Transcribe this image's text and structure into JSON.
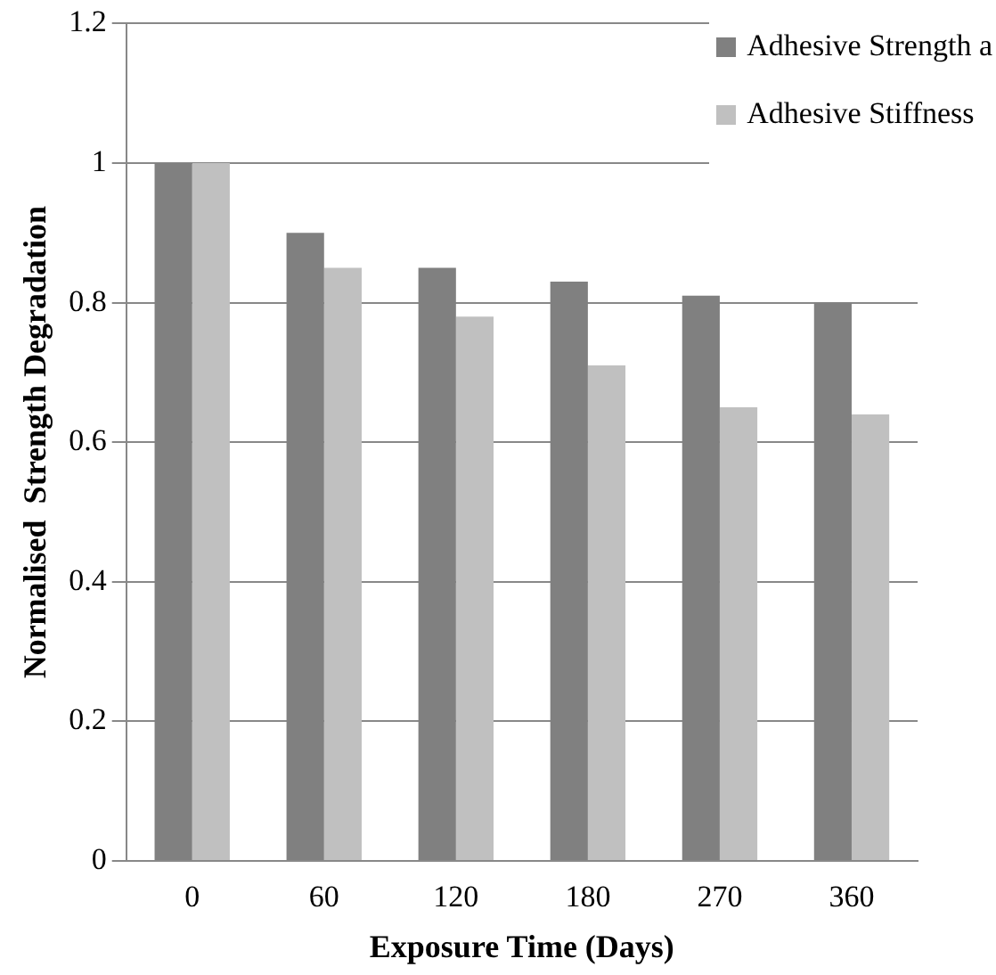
{
  "chart_data": {
    "type": "bar",
    "xlabel": "Exposure Time (Days)",
    "ylabel": "Normalised  Strength Degradation",
    "categories": [
      "0",
      "60",
      "120",
      "180",
      "270",
      "360"
    ],
    "series": [
      {
        "name": "Adhesive Strength a",
        "color": "#808080",
        "values": [
          1,
          0.9,
          0.85,
          0.83,
          0.81,
          0.8
        ]
      },
      {
        "name": "Adhesive Stiffness",
        "color": "#c0c0c0",
        "values": [
          1,
          0.85,
          0.78,
          0.71,
          0.65,
          0.64
        ]
      }
    ],
    "ylim": [
      0,
      1.2
    ],
    "yticks": [
      0,
      0.2,
      0.4,
      0.6,
      0.8,
      1,
      1.2
    ],
    "grid": "y",
    "legend": "top right"
  }
}
